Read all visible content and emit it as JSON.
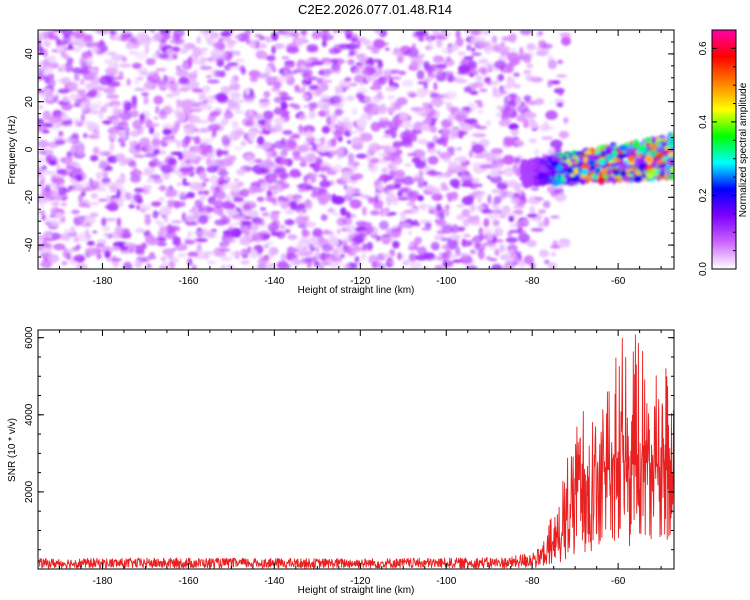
{
  "title": "C2E2.2026.077.01.48.R14",
  "chart_data": [
    {
      "type": "heatmap",
      "xlabel": "Height of straight line (km)",
      "ylabel": "Frequency (Hz)",
      "xlim": [
        -195,
        -47
      ],
      "ylim": [
        -50,
        50
      ],
      "x_ticks": [
        -180,
        -160,
        -140,
        -120,
        -100,
        -80,
        -60
      ],
      "x_tick_labels": [
        "-180",
        "-160",
        "-140",
        "-120",
        "-100",
        "-80",
        "-60"
      ],
      "y_ticks": [
        -40,
        -20,
        0,
        20,
        40
      ],
      "y_tick_labels": [
        "-40",
        "-20",
        "0",
        "20",
        "40"
      ],
      "noise_region": {
        "x_from": -195,
        "x_to": -76,
        "y_from": -50,
        "y_to": 50,
        "amplitude": [
          0.02,
          0.12
        ]
      },
      "signal_region": {
        "x_from": -82,
        "x_to": -47,
        "center_y_start": -10,
        "center_y_end": -3,
        "half_width": 9,
        "amplitude": [
          0.1,
          0.62
        ]
      },
      "colorbar": {
        "label": "Normalized spectral amplitude",
        "range": [
          0,
          0.65
        ],
        "ticks": [
          0.0,
          0.2,
          0.4,
          0.6
        ],
        "tick_labels": [
          "0.0",
          "0.2",
          "0.4",
          "0.6"
        ],
        "colors": [
          "#ffffff",
          "#cc66ff",
          "#7f00ff",
          "#0000ff",
          "#00ffff",
          "#00ff00",
          "#ffff00",
          "#ff8000",
          "#ff0000",
          "#ff00aa"
        ]
      }
    },
    {
      "type": "line",
      "xlabel": "Height of straight line (km)",
      "ylabel": "SNR (10 * v/v)",
      "xlim": [
        -195,
        -47
      ],
      "ylim": [
        0,
        6200
      ],
      "x_ticks": [
        -180,
        -160,
        -140,
        -120,
        -100,
        -80,
        -60
      ],
      "x_tick_labels": [
        "-180",
        "-160",
        "-140",
        "-120",
        "-100",
        "-80",
        "-60"
      ],
      "y_ticks": [
        2000,
        4000,
        6000
      ],
      "y_tick_labels": [
        "2000",
        "4000",
        "6000"
      ],
      "series": [
        {
          "name": "SNR",
          "color": "#e82020",
          "x": [
            -195,
            -160,
            -130,
            -100,
            -85,
            -78,
            -75,
            -72,
            -70,
            -68,
            -66,
            -64,
            -62,
            -60,
            -58,
            -56,
            -54,
            -52,
            -50,
            -48,
            -47
          ],
          "y_baseline": [
            150,
            160,
            150,
            160,
            170,
            250,
            500,
            1200,
            1800,
            2200,
            2400,
            2300,
            2600,
            2500,
            2800,
            2600,
            2900,
            2700,
            2600,
            2500,
            2500
          ],
          "y_peak": [
            300,
            320,
            300,
            320,
            340,
            600,
            1500,
            2800,
            3800,
            4300,
            4000,
            4600,
            5500,
            6200,
            5800,
            6100,
            6000,
            5200,
            5700,
            5000,
            4800
          ]
        }
      ]
    }
  ]
}
